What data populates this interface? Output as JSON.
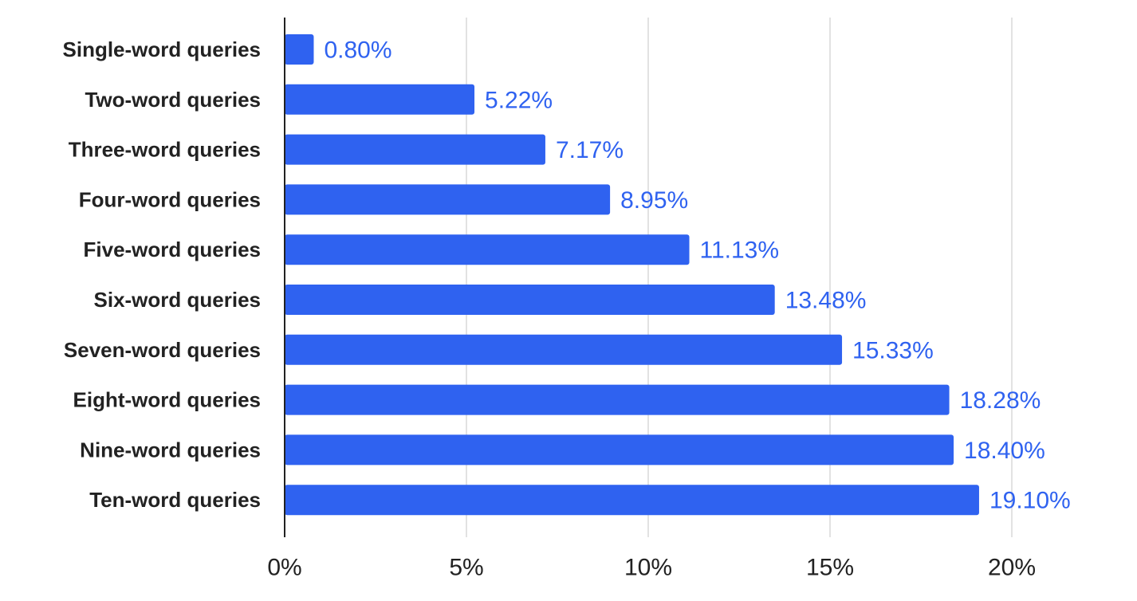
{
  "chart_data": {
    "type": "bar",
    "orientation": "horizontal",
    "title": "",
    "xlabel": "",
    "ylabel": "",
    "categories": [
      "Single-word queries",
      "Two-word queries",
      "Three-word queries",
      "Four-word queries",
      "Five-word queries",
      "Six-word queries",
      "Seven-word queries",
      "Eight-word queries",
      "Nine-word queries",
      "Ten-word queries"
    ],
    "values": [
      0.8,
      5.22,
      7.17,
      8.95,
      11.13,
      13.48,
      15.33,
      18.28,
      18.4,
      19.1
    ],
    "value_labels": [
      "0.80%",
      "5.22%",
      "7.17%",
      "8.95%",
      "11.13%",
      "13.48%",
      "15.33%",
      "18.28%",
      "18.40%",
      "19.10%"
    ],
    "x_ticks": [
      0,
      5,
      10,
      15,
      20
    ],
    "x_tick_labels": [
      "0%",
      "5%",
      "10%",
      "15%",
      "20%"
    ],
    "xlim": [
      0,
      20
    ],
    "grid": "vertical",
    "legend": "none",
    "colors": {
      "bar": "#2f62f0",
      "value_label": "#2f62f0",
      "text": "#222222",
      "grid": "#e2e2e2",
      "axis": "#222222"
    }
  }
}
